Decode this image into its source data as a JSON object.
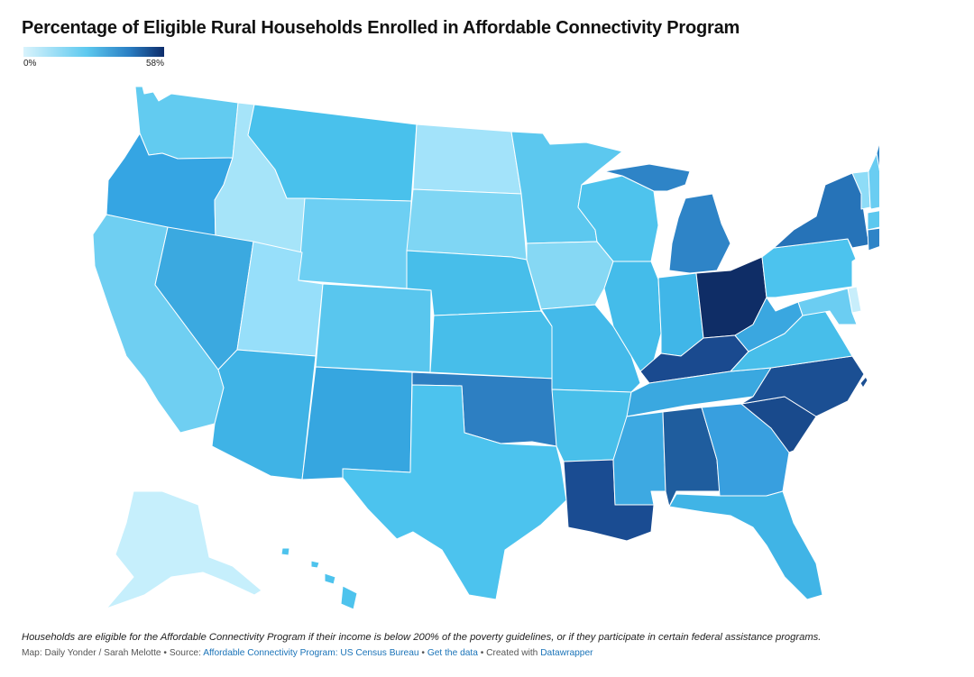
{
  "title": "Percentage of Eligible Rural Households Enrolled in Affordable Connectivity Program",
  "legend": {
    "min_label": "0%",
    "max_label": "58%",
    "low_color": "#d9f3fc",
    "high_color": "#0d2c6a"
  },
  "states": {
    "WA": "#62cbf0",
    "OR": "#35a5e3",
    "CA": "#6fcff2",
    "ID": "#a6e4f9",
    "NV": "#3ba9e0",
    "MT": "#49c1ec",
    "WY": "#6dcff3",
    "UT": "#97dffa",
    "AZ": "#3fb3e6",
    "CO": "#59c6ee",
    "NM": "#36a6e0",
    "ND": "#a3e3fa",
    "SD": "#7fd6f4",
    "NE": "#47beea",
    "KS": "#47beea",
    "OK": "#2d7fc2",
    "TX": "#4cc3ee",
    "MN": "#5cc8ef",
    "IA": "#86d8f4",
    "MO": "#44baea",
    "AR": "#48bfea",
    "LA": "#1a4c92",
    "WI": "#4ec3ed",
    "IL": "#44bcea",
    "MI": "#2e84c7",
    "IN": "#40b6e8",
    "OH": "#0f2d66",
    "KY": "#1a4a8f",
    "TN": "#3aa8e0",
    "MS": "#3da9e2",
    "AL": "#1f5d9e",
    "GA": "#389fdf",
    "FL": "#40b4e6",
    "SC": "#194a8c",
    "NC": "#1b4f93",
    "VA": "#47beea",
    "WV": "#3aa7e0",
    "PA": "#4cc3ee",
    "NY": "#2673b8",
    "VT": "#8edcf7",
    "NH": "#6acdf2",
    "ME": "#2f88c9",
    "MA": "#5cc8ef",
    "CT": "#2e84c7",
    "NJ": "#ffffff",
    "DE": "#c8eefb",
    "MD": "#6bcdf2",
    "AK": "#c6effc",
    "HI": "#4ec3ed"
  },
  "footer": {
    "note": "Households are eligible for the Affordable Connectivity Program if their income is below 200% of the poverty guidelines, or if they participate in certain federal assistance programs.",
    "prefix": "Map: Daily Yonder / Sarah Melotte • Source:",
    "source_link": "Affordable Connectivity Program: US Census Bureau",
    "sep1": "•",
    "data_link": "Get the data",
    "created_with": "• Created with",
    "tool_link": "Datawrapper"
  }
}
